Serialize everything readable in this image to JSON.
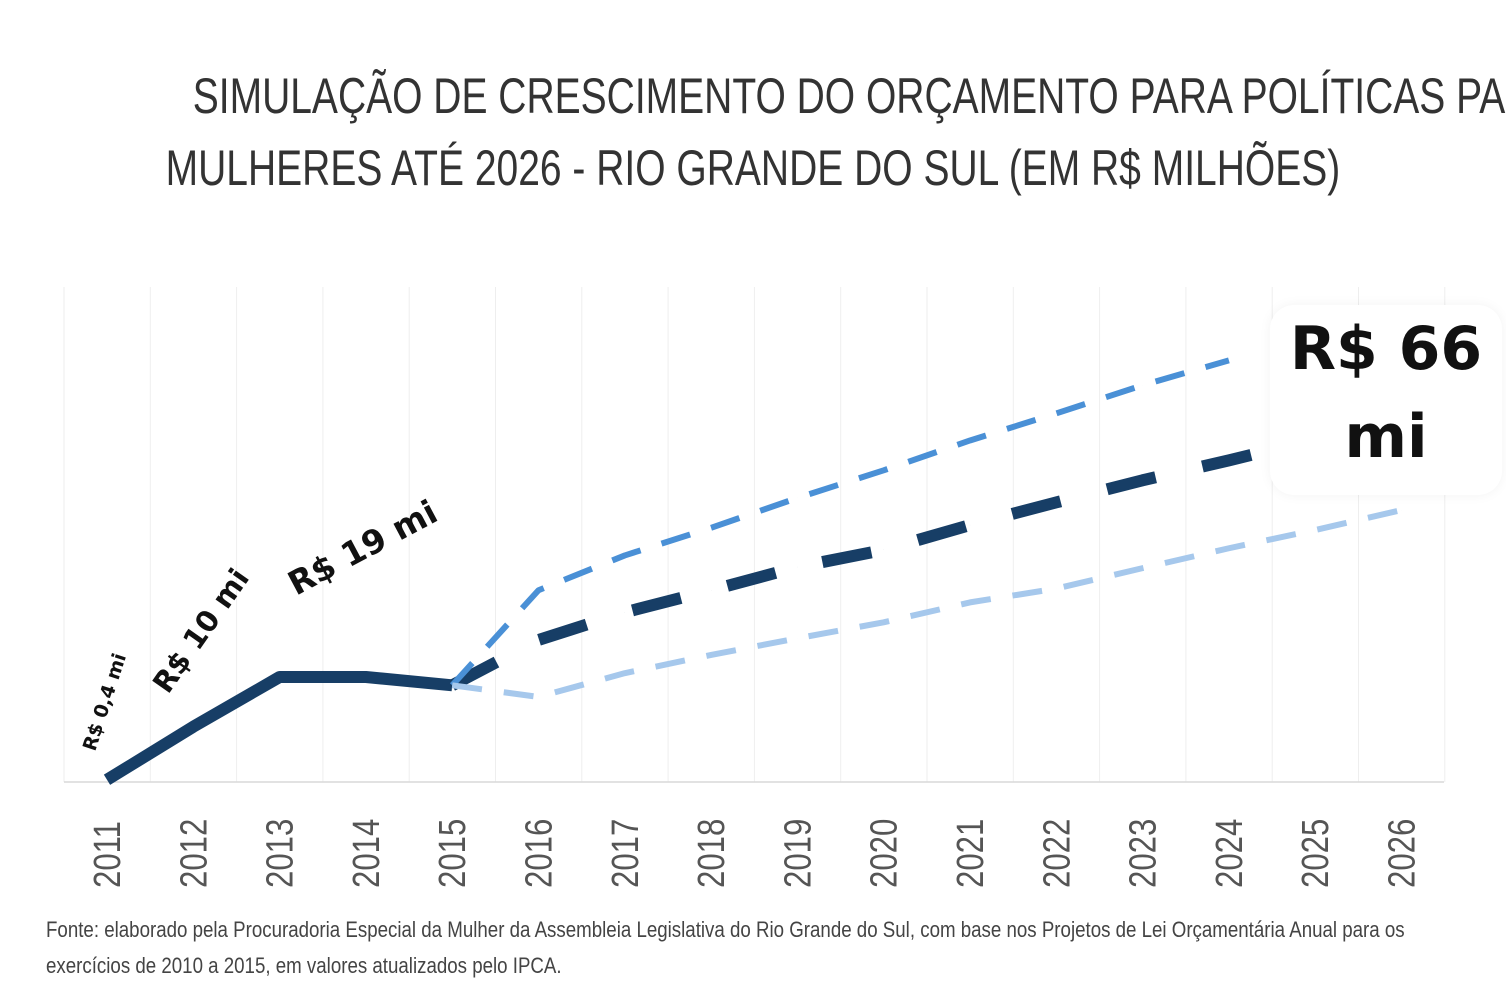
{
  "title_line1": "SIMULAÇÃO DE CRESCIMENTO DO ORÇAMENTO PARA POLÍTICAS PARA",
  "title_line2": "MULHERES ATÉ 2026 - RIO GRANDE DO SUL (EM R$ MILHÕES)",
  "source": "Fonte: elaborado pela Procuradoria Especial da Mulher da Assembleia Legislativa do Rio Grande do Sul, com base nos Projetos de Lei Orçamentária Anual para os exercícios de 2010 a 2015, em valores atualizados pelo IPCA.",
  "chart_data": {
    "type": "line",
    "categories": [
      "2011",
      "2012",
      "2013",
      "2014",
      "2015",
      "2016",
      "2017",
      "2018",
      "2019",
      "2020",
      "2021",
      "2022",
      "2023",
      "2024",
      "2025",
      "2026"
    ],
    "ylim": [
      0,
      90
    ],
    "grid": "vertical",
    "series": [
      {
        "style": "solid",
        "color": "#173e66",
        "values": [
          0.4,
          10,
          19,
          19,
          17.5,
          null,
          null,
          null,
          null,
          null,
          null,
          null,
          null,
          null,
          null,
          null
        ]
      },
      {
        "style": "dashed",
        "color": "#173e66",
        "values": [
          null,
          null,
          null,
          null,
          17.5,
          25.7,
          30.7,
          34.7,
          38.9,
          42,
          46.5,
          50.6,
          54.6,
          58.2,
          62,
          66
        ]
      },
      {
        "style": "dashed",
        "color": "#4a90d6",
        "values": [
          null,
          null,
          null,
          null,
          17.5,
          34.7,
          41,
          46,
          51.4,
          56.4,
          61.8,
          66.7,
          71.8,
          76.3,
          null,
          null
        ]
      },
      {
        "style": "dashed",
        "color": "#a6c8ec",
        "values": [
          null,
          null,
          null,
          null,
          17.5,
          15.4,
          19.7,
          23,
          26,
          28.9,
          32.5,
          35,
          38.7,
          42.3,
          45.6,
          49.2
        ]
      }
    ],
    "annotations": {
      "a2011": "R$ 0,4 mi",
      "a2012": "R$ 10 mi",
      "a2013": "R$ 19 mi",
      "a2026_line1": "R$ 66",
      "a2026_line2": "mi"
    }
  }
}
